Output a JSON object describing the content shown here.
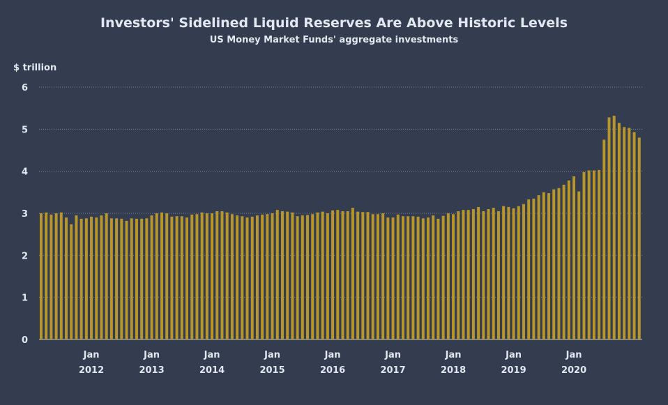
{
  "chart_data": {
    "type": "bar",
    "title": "Investors' Sidelined Liquid Reserves Are Above Historic Levels",
    "subtitle": "US Money Market Funds' aggregate investments",
    "ylabel": "$ trillion",
    "ylim": [
      0,
      6
    ],
    "yticks": [
      0,
      1,
      2,
      3,
      4,
      5,
      6
    ],
    "grid": true,
    "bar_color": "#b8962a",
    "x_tick_labels": [
      {
        "month": "Jan",
        "year": "2012"
      },
      {
        "month": "Jan",
        "year": "2013"
      },
      {
        "month": "Jan",
        "year": "2014"
      },
      {
        "month": "Jan",
        "year": "2015"
      },
      {
        "month": "Jan",
        "year": "2016"
      },
      {
        "month": "Jan",
        "year": "2017"
      },
      {
        "month": "Jan",
        "year": "2018"
      },
      {
        "month": "Jan",
        "year": "2019"
      },
      {
        "month": "Jan",
        "year": "2020"
      }
    ],
    "x_start": "2011-03",
    "x_end": "2020-11",
    "values": [
      3.0,
      3.02,
      2.97,
      3.0,
      3.02,
      2.9,
      2.74,
      2.95,
      2.87,
      2.88,
      2.92,
      2.9,
      2.95,
      3.0,
      2.88,
      2.88,
      2.87,
      2.82,
      2.88,
      2.87,
      2.87,
      2.88,
      2.95,
      3.0,
      3.02,
      3.0,
      2.92,
      2.93,
      2.93,
      2.9,
      2.97,
      2.98,
      3.02,
      3.0,
      3.0,
      3.05,
      3.05,
      3.02,
      2.98,
      2.95,
      2.93,
      2.9,
      2.92,
      2.95,
      2.97,
      2.98,
      3.0,
      3.08,
      3.05,
      3.04,
      3.02,
      2.93,
      2.95,
      2.96,
      2.98,
      3.02,
      3.04,
      3.0,
      3.07,
      3.08,
      3.05,
      3.05,
      3.13,
      3.04,
      3.03,
      3.03,
      2.98,
      2.98,
      3.0,
      2.9,
      2.9,
      2.97,
      2.93,
      2.93,
      2.93,
      2.92,
      2.88,
      2.9,
      2.95,
      2.87,
      2.94,
      3.0,
      2.98,
      3.05,
      3.08,
      3.08,
      3.1,
      3.15,
      3.05,
      3.1,
      3.13,
      3.05,
      3.17,
      3.15,
      3.12,
      3.17,
      3.22,
      3.33,
      3.35,
      3.43,
      3.5,
      3.48,
      3.57,
      3.6,
      3.68,
      3.78,
      3.88,
      3.52,
      3.98,
      4.02,
      4.02,
      4.03,
      4.75,
      5.28,
      5.32,
      5.15,
      5.05,
      5.03,
      4.93,
      4.8
    ]
  }
}
